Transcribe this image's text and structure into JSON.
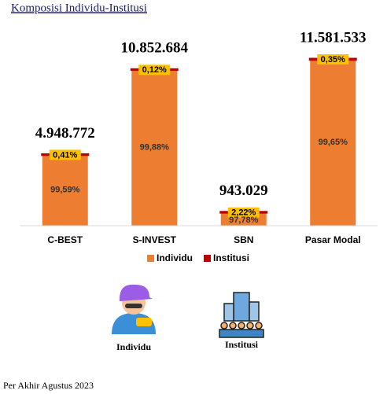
{
  "chart_data": {
    "type": "stacked_bar",
    "title": "Komposisi Individu-Institusi",
    "categories": [
      "C-BEST",
      "S-INVEST",
      "SBN",
      "Pasar Modal"
    ],
    "totals": {
      "values": [
        4948772,
        10852684,
        943029,
        11581533
      ],
      "value_labels": [
        "4.948.772",
        "10.852.684",
        "943.029",
        "11.581.533"
      ]
    },
    "series": [
      {
        "name": "Individu",
        "color": "#ed7d31",
        "values": [
          99.59,
          99.88,
          97.78,
          99.65
        ],
        "value_labels": [
          "99,59%",
          "99,88%",
          "97,78%",
          "99,65%"
        ]
      },
      {
        "name": "Institusi",
        "color": "#c00000",
        "values": [
          0.41,
          0.12,
          2.22,
          0.35
        ],
        "value_labels": [
          "0,41%",
          "0,12%",
          "2,22%",
          "0,35%"
        ]
      }
    ],
    "label_box_color": "#ffc000"
  },
  "icons": [
    {
      "label": "Individu"
    },
    {
      "label": "Institusi"
    }
  ],
  "footer": "Per Akhir Agustus 2023"
}
